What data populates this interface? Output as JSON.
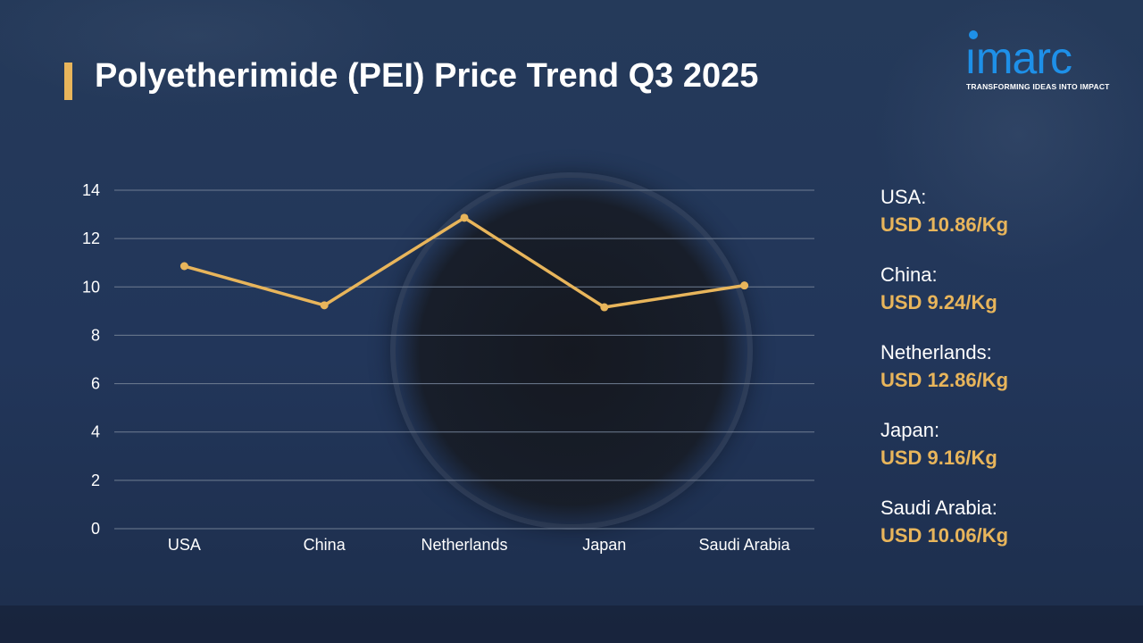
{
  "title": "Polyetherimide (PEI) Price Trend Q3 2025",
  "logo": {
    "word": "ımarc",
    "tagline": "TRANSFORMING IDEAS INTO IMPACT",
    "color": "#1e90e8"
  },
  "colors": {
    "accent": "#e8b55b",
    "background": "#22365a",
    "text": "#ffffff",
    "gridline": "#6f7d92"
  },
  "chart_data": {
    "type": "line",
    "categories": [
      "USA",
      "China",
      "Netherlands",
      "Japan",
      "Saudi Arabia"
    ],
    "series": [
      {
        "values": [
          10.86,
          9.24,
          12.86,
          9.16,
          10.06
        ],
        "color": "#e8b55b"
      }
    ],
    "ylim": [
      0,
      14
    ],
    "yticks": [
      0,
      2,
      4,
      6,
      8,
      10,
      12,
      14
    ],
    "grid": true,
    "title": "",
    "xlabel": "",
    "ylabel": ""
  },
  "legend": [
    {
      "country": "USA:",
      "price": "USD 10.86/Kg"
    },
    {
      "country": "China:",
      "price": "USD 9.24/Kg"
    },
    {
      "country": "Netherlands:",
      "price": "USD 12.86/Kg"
    },
    {
      "country": "Japan:",
      "price": "USD 9.16/Kg"
    },
    {
      "country": "Saudi Arabia:",
      "price": "USD 10.06/Kg"
    }
  ]
}
